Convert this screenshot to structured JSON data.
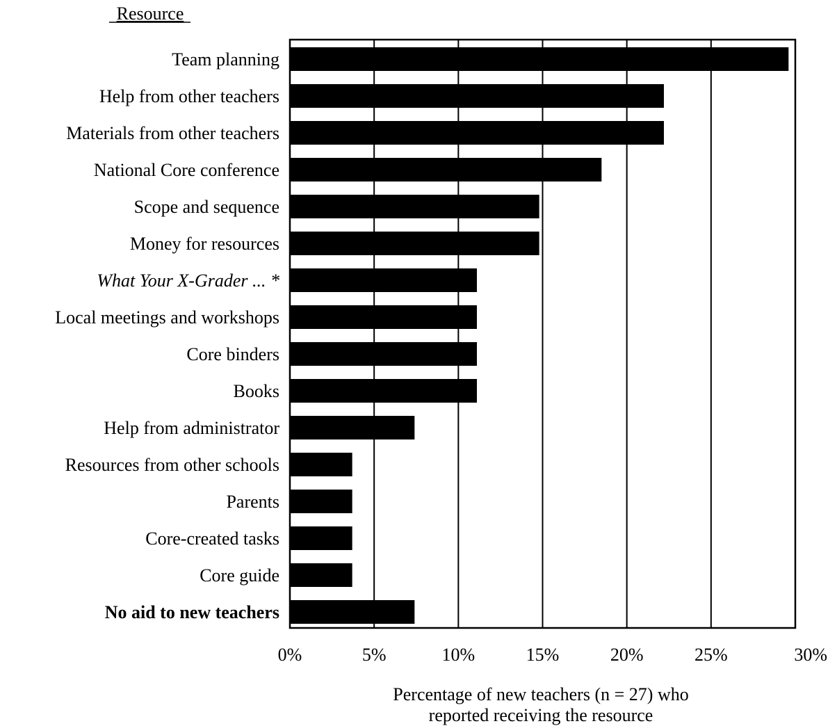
{
  "chart_data": {
    "type": "bar",
    "orientation": "horizontal",
    "category_axis_title": "Resource",
    "categories": [
      "Team planning",
      "Help from other teachers",
      "Materials from other teachers",
      "National Core conference",
      "Scope and sequence",
      "Money for resources",
      "What Your X-Grader ... *",
      "Local meetings and workshops",
      "Core binders",
      "Books",
      "Help from administrator",
      "Resources from other schools",
      "Parents",
      "Core-created tasks",
      "Core guide",
      "No aid to new teachers"
    ],
    "category_styles": [
      "normal",
      "normal",
      "normal",
      "normal",
      "normal",
      "normal",
      "italic",
      "normal",
      "normal",
      "normal",
      "normal",
      "normal",
      "normal",
      "normal",
      "normal",
      "bold"
    ],
    "values": [
      29.6,
      22.2,
      22.2,
      18.5,
      14.8,
      14.8,
      11.1,
      11.1,
      11.1,
      11.1,
      7.4,
      3.7,
      3.7,
      3.7,
      3.7,
      7.4
    ],
    "xlim": [
      0,
      30
    ],
    "xticks": [
      0,
      5,
      10,
      15,
      20,
      25,
      30
    ],
    "xtick_labels": [
      "0%",
      "5%",
      "10%",
      "15%",
      "20%",
      "25%",
      "30%"
    ],
    "xlabel_lines": [
      "Percentage of new teachers (n = 27) who",
      "reported receiving the resource"
    ],
    "grid": "vertical",
    "legend": "none",
    "bar_color": "#000000"
  }
}
